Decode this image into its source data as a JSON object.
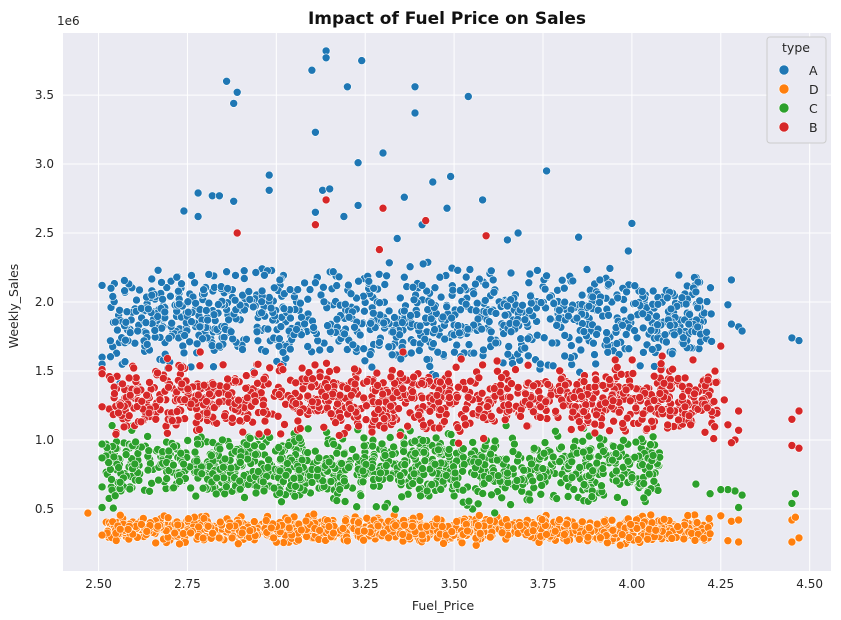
{
  "chart_data": {
    "type": "scatter",
    "title": "Impact of Fuel Price on Sales",
    "xlabel": "Fuel_Price",
    "ylabel": "Weekly_Sales",
    "y_offset_text": "1e6",
    "xlim": [
      2.4,
      4.56
    ],
    "ylim": [
      0.05,
      3.95
    ],
    "x_ticks": [
      2.5,
      2.75,
      3.0,
      3.25,
      3.5,
      3.75,
      4.0,
      4.25,
      4.5
    ],
    "x_tick_labels": [
      "2.50",
      "2.75",
      "3.00",
      "3.25",
      "3.50",
      "3.75",
      "4.00",
      "4.25",
      "4.50"
    ],
    "y_ticks": [
      0.5,
      1.0,
      1.5,
      2.0,
      2.5,
      3.0,
      3.5
    ],
    "y_tick_labels": [
      "0.5",
      "1.0",
      "1.5",
      "2.0",
      "2.5",
      "3.0",
      "3.5"
    ],
    "grid": true,
    "background": "#eaeaf2",
    "legend": {
      "title": "type",
      "placement": "top-right",
      "entries": [
        {
          "label": "A",
          "color": "#1f77b4"
        },
        {
          "label": "D",
          "color": "#ff7f0e"
        },
        {
          "label": "C",
          "color": "#2ca02c"
        },
        {
          "label": "B",
          "color": "#d62728"
        }
      ]
    },
    "series": [
      {
        "name": "A",
        "color": "#1f77b4",
        "points": [
          [
            3.14,
            3.82
          ],
          [
            3.14,
            3.77
          ],
          [
            3.24,
            3.75
          ],
          [
            3.1,
            3.68
          ],
          [
            3.2,
            3.56
          ],
          [
            2.86,
            3.6
          ],
          [
            2.89,
            3.52
          ],
          [
            2.88,
            3.44
          ],
          [
            3.39,
            3.56
          ],
          [
            3.39,
            3.37
          ],
          [
            3.54,
            3.49
          ],
          [
            3.11,
            3.23
          ],
          [
            3.23,
            3.01
          ],
          [
            3.3,
            3.08
          ],
          [
            3.76,
            2.95
          ],
          [
            2.98,
            2.92
          ],
          [
            3.49,
            2.91
          ],
          [
            3.44,
            2.87
          ],
          [
            3.13,
            2.81
          ],
          [
            3.15,
            2.82
          ],
          [
            3.36,
            2.76
          ],
          [
            2.98,
            2.81
          ],
          [
            2.78,
            2.79
          ],
          [
            2.82,
            2.77
          ],
          [
            2.84,
            2.77
          ],
          [
            3.58,
            2.74
          ],
          [
            2.88,
            2.73
          ],
          [
            3.23,
            2.7
          ],
          [
            3.48,
            2.68
          ],
          [
            3.11,
            2.65
          ],
          [
            2.74,
            2.66
          ],
          [
            3.19,
            2.62
          ],
          [
            2.78,
            2.62
          ],
          [
            4.0,
            2.57
          ],
          [
            3.41,
            2.56
          ],
          [
            3.34,
            2.46
          ],
          [
            3.68,
            2.5
          ],
          [
            3.65,
            2.45
          ],
          [
            3.85,
            2.47
          ],
          [
            3.99,
            2.37
          ],
          [
            4.28,
            2.16
          ],
          [
            4.27,
            1.98
          ],
          [
            4.3,
            1.82
          ],
          [
            4.28,
            1.84
          ],
          [
            4.31,
            1.79
          ],
          [
            4.45,
            1.74
          ],
          [
            4.47,
            1.72
          ],
          [
            2.51,
            2.12
          ],
          [
            2.54,
            2.04
          ],
          [
            2.51,
            1.6
          ],
          [
            2.51,
            1.55
          ],
          [
            2.56,
            1.41
          ],
          [
            2.58,
            1.93
          ],
          [
            2.61,
            1.79
          ],
          [
            2.64,
            1.95
          ],
          [
            2.68,
            2.02
          ],
          [
            2.72,
            2.18
          ],
          [
            2.77,
            2.14
          ],
          [
            2.81,
            2.2
          ],
          [
            2.86,
            2.22
          ],
          [
            2.91,
            2.17
          ],
          [
            2.96,
            2.08
          ],
          [
            3.01,
            2.16
          ],
          [
            3.06,
            2.09
          ],
          [
            3.11,
            2.14
          ],
          [
            3.16,
            2.22
          ],
          [
            3.21,
            2.06
          ],
          [
            3.26,
            2.15
          ],
          [
            3.31,
            2.19
          ],
          [
            3.36,
            2.18
          ],
          [
            3.41,
            2.12
          ],
          [
            3.46,
            2.18
          ],
          [
            3.51,
            2.23
          ],
          [
            3.56,
            2.13
          ],
          [
            3.61,
            2.16
          ],
          [
            3.66,
            2.21
          ],
          [
            3.71,
            2.14
          ],
          [
            3.76,
            2.19
          ],
          [
            3.81,
            2.1
          ],
          [
            3.86,
            2.05
          ],
          [
            3.91,
            2.16
          ],
          [
            3.96,
            2.03
          ],
          [
            4.01,
            1.99
          ],
          [
            4.06,
            2.08
          ],
          [
            4.11,
            1.95
          ],
          [
            4.16,
            1.84
          ],
          [
            4.21,
            1.78
          ]
        ]
      },
      {
        "name": "D",
        "color": "#ff7f0e",
        "points": [
          [
            2.47,
            0.47
          ],
          [
            2.51,
            0.31
          ],
          [
            4.25,
            0.45
          ],
          [
            4.28,
            0.41
          ],
          [
            4.3,
            0.42
          ],
          [
            4.45,
            0.42
          ],
          [
            4.46,
            0.44
          ],
          [
            4.45,
            0.26
          ],
          [
            4.47,
            0.29
          ],
          [
            4.3,
            0.26
          ],
          [
            4.27,
            0.27
          ],
          [
            4.22,
            0.32
          ]
        ]
      },
      {
        "name": "C",
        "color": "#2ca02c",
        "points": [
          [
            2.51,
            0.97
          ],
          [
            2.51,
            0.87
          ],
          [
            2.51,
            0.66
          ],
          [
            2.51,
            0.51
          ],
          [
            4.29,
            0.63
          ],
          [
            4.3,
            0.51
          ],
          [
            4.31,
            0.6
          ],
          [
            4.46,
            0.61
          ],
          [
            4.45,
            0.54
          ],
          [
            4.27,
            0.64
          ],
          [
            4.25,
            0.64
          ],
          [
            4.22,
            0.61
          ],
          [
            4.18,
            0.68
          ]
        ]
      },
      {
        "name": "B",
        "color": "#d62728",
        "points": [
          [
            2.51,
            1.51
          ],
          [
            2.51,
            1.48
          ],
          [
            2.51,
            1.24
          ],
          [
            2.89,
            2.5
          ],
          [
            3.11,
            2.56
          ],
          [
            3.3,
            2.68
          ],
          [
            3.42,
            2.59
          ],
          [
            3.59,
            2.48
          ],
          [
            3.14,
            2.74
          ],
          [
            3.29,
            2.38
          ],
          [
            4.25,
            1.68
          ],
          [
            4.3,
            1.21
          ],
          [
            4.3,
            1.07
          ],
          [
            4.29,
            1.0
          ],
          [
            4.28,
            0.98
          ],
          [
            4.47,
            1.21
          ],
          [
            4.45,
            1.15
          ],
          [
            4.45,
            0.96
          ],
          [
            4.47,
            0.94
          ],
          [
            4.26,
            1.29
          ],
          [
            4.27,
            1.11
          ],
          [
            4.23,
            1.01
          ]
        ]
      }
    ],
    "dense_bands": [
      {
        "series": "A",
        "x_range": [
          2.53,
          4.23
        ],
        "y_range": [
          1.4,
          2.35
        ],
        "count": 1000
      },
      {
        "series": "D",
        "x_range": [
          2.52,
          4.22
        ],
        "y_range": [
          0.22,
          0.48
        ],
        "count": 1100
      },
      {
        "series": "C",
        "x_range": [
          2.52,
          4.08
        ],
        "y_range": [
          0.45,
          1.15
        ],
        "count": 1100
      },
      {
        "series": "B",
        "x_range": [
          2.53,
          4.24
        ],
        "y_range": [
          0.95,
          1.65
        ],
        "count": 1050
      }
    ]
  }
}
